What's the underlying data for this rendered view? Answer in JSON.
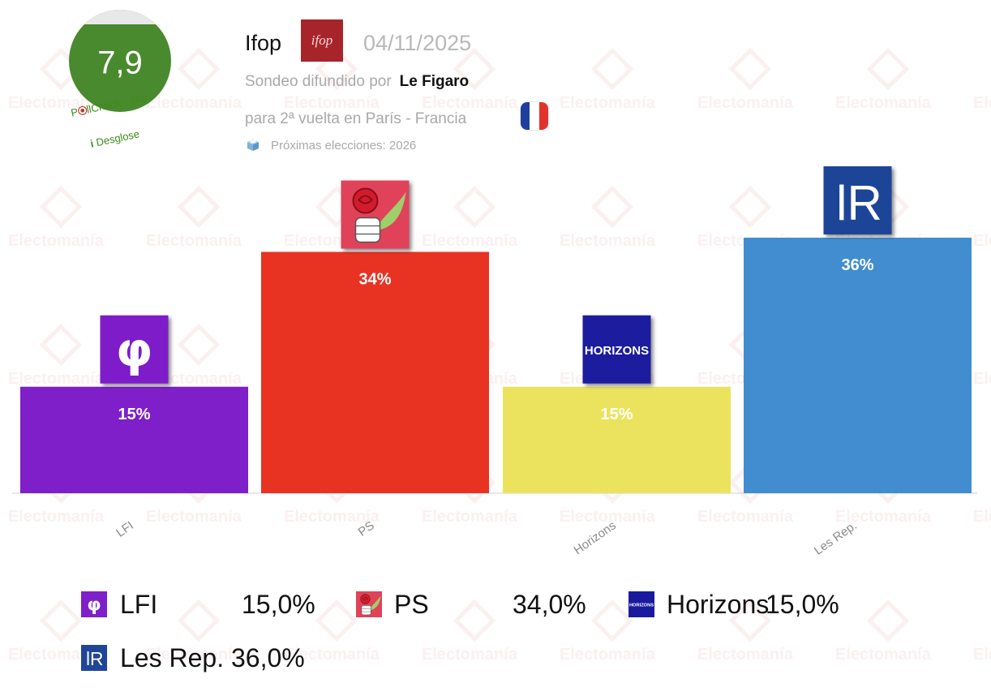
{
  "watermark_text": "Electomanía",
  "score": {
    "value": "7,9",
    "pollcheck_label": "llCheck - Ifop",
    "desglose_label": "Desglose",
    "info_symbol": "i"
  },
  "header": {
    "pollster": "Ifop",
    "pollster_logo_text": "ifop",
    "date": "04/11/2025",
    "sponsor_prefix": "Sondeo difundido por",
    "sponsor": "Le Figaro",
    "scope": "para 2ª vuelta en París - Francia",
    "next_elections": "Próximas elecciones: 2026"
  },
  "colors": {
    "flag": [
      "#1f3fa0",
      "#ffffff",
      "#e2322a"
    ],
    "score_badge": "#4a8a2e"
  },
  "chart_data": {
    "type": "bar",
    "categories": [
      "LFI",
      "PS",
      "Horizons",
      "Les Rep."
    ],
    "values": [
      15,
      34,
      15,
      36
    ],
    "data_labels": [
      "15%",
      "34%",
      "15%",
      "36%"
    ],
    "colors": [
      "#7e1fc9",
      "#e83323",
      "#ebe35e",
      "#418dd0"
    ],
    "icons": [
      "lfi-phi-logo",
      "ps-rose-fist-logo",
      "horizons-logo",
      "les-republicains-logo"
    ],
    "icon_text": [
      "φ",
      "",
      "HORIZONS",
      "lR"
    ],
    "ylim": [
      0,
      40
    ],
    "grid": false
  },
  "legend": [
    {
      "label": "LFI",
      "value": "15,0%"
    },
    {
      "label": "PS",
      "value": "34,0%"
    },
    {
      "label": "Horizons",
      "value": "15,0%"
    },
    {
      "label": "Les Rep.",
      "value": "36,0%"
    }
  ]
}
